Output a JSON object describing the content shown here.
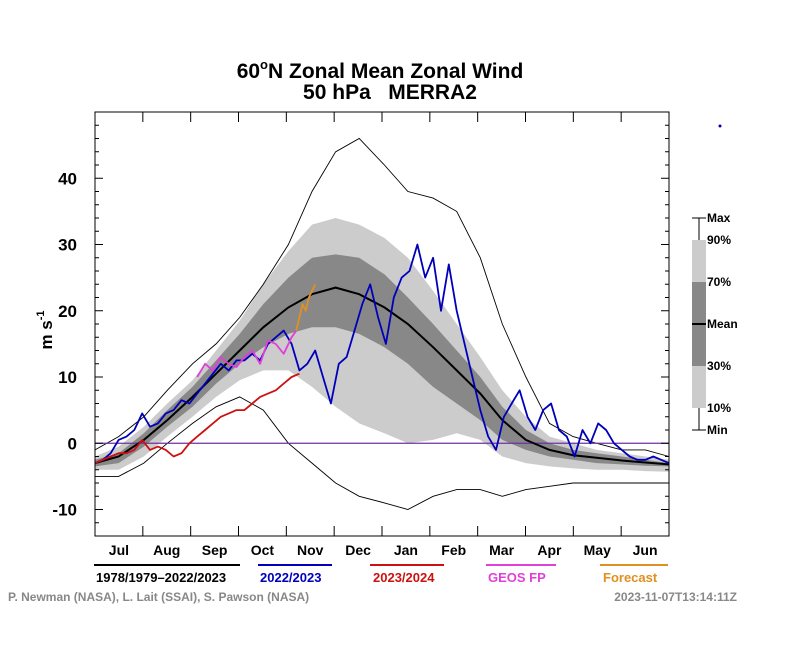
{
  "chart_data": {
    "type": "line",
    "title": "60°N Zonal Mean Zonal Wind",
    "title_main": "60",
    "title_degree": "o",
    "title_rest": "N Zonal Mean Zonal Wind",
    "subtitle": "50 hPa   MERRA2",
    "ylabel": "m s",
    "ylabel_exp": "-1",
    "ylim": [
      -14,
      50
    ],
    "yticks": [
      -10,
      0,
      10,
      20,
      30,
      40
    ],
    "ytick_labels": [
      "-10",
      "0",
      "10",
      "20",
      "30",
      "40"
    ],
    "xlim": [
      0,
      365
    ],
    "months": [
      "Jul",
      "Aug",
      "Sep",
      "Oct",
      "Nov",
      "Dec",
      "Jan",
      "Feb",
      "Mar",
      "Apr",
      "May",
      "Jun"
    ],
    "zero_line": 0,
    "climatology": {
      "label": "1978/1979–2022/2023",
      "x": [
        0,
        15,
        31,
        46,
        62,
        77,
        92,
        107,
        123,
        138,
        153,
        168,
        184,
        199,
        215,
        230,
        245,
        259,
        274,
        289,
        304,
        319,
        335,
        350,
        365
      ],
      "max": [
        -1,
        1,
        4,
        8,
        12,
        15,
        19,
        24,
        30,
        38,
        44,
        46,
        42,
        38,
        37,
        35,
        28,
        18,
        10,
        3,
        1,
        0,
        -1,
        -1,
        -2
      ],
      "p90": [
        -2,
        -0.5,
        2.5,
        6,
        9.5,
        14,
        18.5,
        24,
        29,
        33,
        34,
        33,
        31,
        28,
        23,
        18,
        13,
        8,
        4,
        1,
        0,
        -1,
        -1.5,
        -2,
        -2.5
      ],
      "p70": [
        -2.5,
        -1.5,
        1.5,
        5,
        8.5,
        12.5,
        16.5,
        21,
        25,
        28,
        28.5,
        28,
        25.5,
        22,
        18,
        14,
        10,
        5.5,
        2,
        0,
        -1,
        -1.5,
        -2,
        -2.5,
        -3
      ],
      "mean": [
        -3,
        -2,
        0.5,
        3.5,
        7,
        10.5,
        14,
        17.5,
        20.5,
        22.5,
        23.5,
        22.5,
        20.5,
        18,
        14.5,
        11,
        7.5,
        3.5,
        0.5,
        -1,
        -1.8,
        -2.2,
        -2.6,
        -2.9,
        -3.2
      ],
      "p30": [
        -3.5,
        -3,
        -0.5,
        2.5,
        5.5,
        9,
        12,
        14.5,
        16.5,
        17.5,
        17.5,
        16.5,
        14.5,
        12,
        8.5,
        6,
        3.5,
        0.5,
        -1,
        -2,
        -2.5,
        -3,
        -3.2,
        -3.4,
        -3.5
      ],
      "p10": [
        -4,
        -4,
        -2,
        1,
        4,
        7,
        9.5,
        11,
        11,
        8.5,
        5.5,
        3,
        1.5,
        0,
        0.5,
        1.5,
        0.5,
        -2,
        -3,
        -3.5,
        -3.8,
        -4,
        -4,
        -4.2,
        -4.3
      ],
      "min": [
        -5,
        -5,
        -3,
        0,
        3,
        5.5,
        7,
        5,
        0,
        -3,
        -6,
        -8,
        -9,
        -10,
        -8,
        -7,
        -7,
        -8,
        -7,
        -6.5,
        -6,
        -6,
        -6,
        -6,
        -6
      ]
    },
    "series": [
      {
        "name": "2022/2023",
        "color": "#0000bb",
        "x": [
          0,
          5,
          10,
          15,
          20,
          25,
          30,
          35,
          40,
          45,
          50,
          55,
          60,
          65,
          70,
          75,
          80,
          85,
          90,
          95,
          100,
          105,
          110,
          115,
          120,
          125,
          130,
          135,
          140,
          145,
          150,
          155,
          160,
          165,
          170,
          175,
          180,
          185,
          190,
          195,
          200,
          205,
          210,
          215,
          220,
          225,
          230,
          235,
          240,
          245,
          250,
          255,
          260,
          265,
          270,
          275,
          280,
          285,
          290,
          295,
          300,
          305,
          310,
          315,
          320,
          325,
          330,
          335,
          340,
          345,
          350,
          355,
          360,
          365
        ],
        "y": [
          -3,
          -2.5,
          -1.5,
          0.5,
          1,
          2,
          4.5,
          2.5,
          3,
          4.5,
          5,
          6.5,
          6,
          7.5,
          9,
          10.5,
          12,
          11,
          12.5,
          12.5,
          13.5,
          12.5,
          15,
          16,
          17,
          15,
          11,
          12,
          14,
          10,
          6,
          12,
          13,
          17,
          21,
          24,
          19,
          15,
          22,
          25,
          26,
          30,
          25,
          28,
          20,
          27,
          20,
          15,
          10,
          5,
          1,
          -1,
          4,
          6,
          8,
          4,
          2,
          5,
          6,
          2,
          1,
          -2,
          2,
          0,
          3,
          2,
          0,
          -1,
          -2,
          -2.5,
          -2.5,
          -2,
          -2.5,
          -3
        ]
      },
      {
        "name": "2023/2024",
        "color": "#cc1111",
        "x": [
          0,
          5,
          10,
          15,
          20,
          25,
          30,
          35,
          40,
          45,
          50,
          55,
          60,
          65,
          70,
          75,
          80,
          85,
          90,
          95,
          100,
          105,
          110,
          115,
          120,
          125,
          130
        ],
        "y": [
          -3,
          -2.5,
          -2,
          -1.5,
          -1.5,
          -1,
          0.5,
          -1,
          -0.5,
          -1,
          -2,
          -1.5,
          0,
          1,
          2,
          3,
          4,
          4.5,
          5,
          5,
          6,
          7,
          7.5,
          8,
          9,
          10,
          10.5
        ]
      },
      {
        "name": "GEOS FP",
        "color": "#e040d8",
        "x": [
          65,
          70,
          75,
          80,
          85,
          90,
          95,
          100,
          105,
          110,
          115,
          120,
          125,
          128
        ],
        "y": [
          10,
          12,
          11,
          13,
          12,
          11.5,
          13,
          14,
          12,
          15.5,
          15,
          13.5,
          16,
          17
        ]
      },
      {
        "name": "Forecast",
        "color": "#e09020",
        "x": [
          128,
          130,
          132,
          134,
          136,
          138,
          140
        ],
        "y": [
          17,
          19,
          21,
          20,
          22,
          23,
          24
        ]
      }
    ],
    "legend_order": [
      "1978/1979–2022/2023",
      "2022/2023",
      "2023/2024",
      "GEOS FP",
      "Forecast"
    ],
    "percentile_key": [
      "Max",
      "90%",
      "70%",
      "Mean",
      "30%",
      "10%",
      "Min"
    ]
  },
  "legend": {
    "climatology": "1978/1979–2022/2023",
    "year_a": "2022/2023",
    "year_b": "2023/2024",
    "geos": "GEOS FP",
    "forecast": "Forecast",
    "climatology_color": "#000000",
    "year_a_color": "#0000bb",
    "year_b_color": "#cc1111",
    "geos_color": "#e040d8",
    "forecast_color": "#e09020"
  },
  "key": {
    "max": "Max",
    "p90": "90%",
    "p70": "70%",
    "mean": "Mean",
    "p30": "30%",
    "p10": "10%",
    "min": "Min"
  },
  "credits": {
    "authors": "P. Newman (NASA), L. Lait (SSAI), S. Pawson (NASA)",
    "timestamp": "2023-11-07T13:14:11Z"
  },
  "colors": {
    "band_outer": "#cccccc",
    "band_inner": "#888888",
    "zero_line": "#7030a0",
    "credit": "#888888"
  }
}
